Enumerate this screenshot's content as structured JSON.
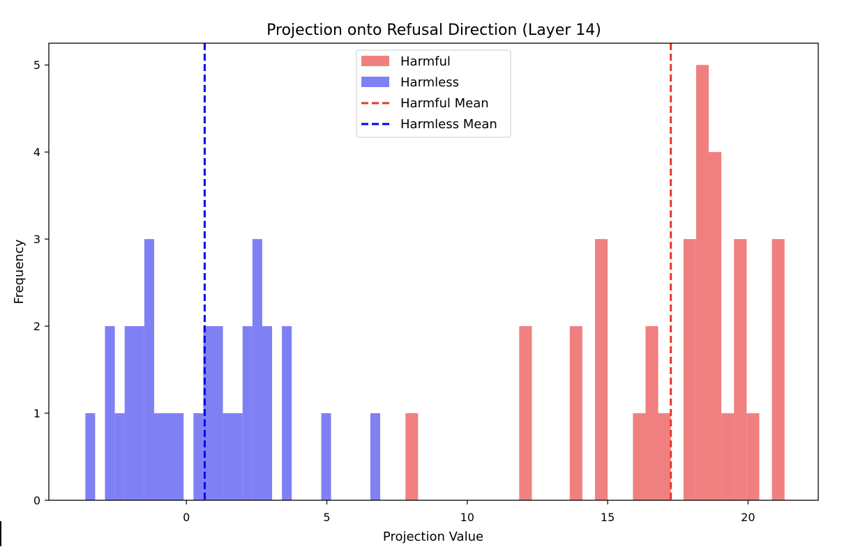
{
  "chart_data": {
    "type": "histogram",
    "title": "Projection onto Refusal Direction (Layer 14)",
    "xlabel": "Projection Value",
    "ylabel": "Frequency",
    "xlim": [
      -4.9,
      22.5
    ],
    "ylim": [
      0,
      5.25
    ],
    "xticks": [
      0,
      5,
      10,
      15,
      20
    ],
    "yticks": [
      0,
      1,
      2,
      3,
      4,
      5
    ],
    "legend_position": "top-center",
    "series": [
      {
        "name": "Harmful",
        "color": "#f08080",
        "bins": [
          {
            "x0": 7.8,
            "x1": 8.25,
            "count": 1
          },
          {
            "x0": 11.85,
            "x1": 12.3,
            "count": 2
          },
          {
            "x0": 13.65,
            "x1": 14.1,
            "count": 2
          },
          {
            "x0": 14.55,
            "x1": 15.0,
            "count": 3
          },
          {
            "x0": 15.9,
            "x1": 16.35,
            "count": 1
          },
          {
            "x0": 16.35,
            "x1": 16.8,
            "count": 2
          },
          {
            "x0": 16.8,
            "x1": 17.25,
            "count": 1
          },
          {
            "x0": 17.7,
            "x1": 18.15,
            "count": 3
          },
          {
            "x0": 18.15,
            "x1": 18.6,
            "count": 5
          },
          {
            "x0": 18.6,
            "x1": 19.05,
            "count": 4
          },
          {
            "x0": 19.05,
            "x1": 19.5,
            "count": 1
          },
          {
            "x0": 19.5,
            "x1": 19.95,
            "count": 3
          },
          {
            "x0": 19.95,
            "x1": 20.4,
            "count": 1
          },
          {
            "x0": 20.85,
            "x1": 21.3,
            "count": 3
          }
        ]
      },
      {
        "name": "Harmless",
        "color": "#8080f5",
        "bins": [
          {
            "x0": -3.6,
            "x1": -3.25,
            "count": 1
          },
          {
            "x0": -2.9,
            "x1": -2.55,
            "count": 2
          },
          {
            "x0": -2.55,
            "x1": -2.2,
            "count": 1
          },
          {
            "x0": -2.2,
            "x1": -1.5,
            "count": 2
          },
          {
            "x0": -1.5,
            "x1": -1.15,
            "count": 3
          },
          {
            "x0": -1.15,
            "x1": -0.1,
            "count": 1
          },
          {
            "x0": 0.25,
            "x1": 0.6,
            "count": 1
          },
          {
            "x0": 0.6,
            "x1": 1.3,
            "count": 2
          },
          {
            "x0": 1.3,
            "x1": 2.0,
            "count": 1
          },
          {
            "x0": 2.0,
            "x1": 2.35,
            "count": 2
          },
          {
            "x0": 2.35,
            "x1": 2.7,
            "count": 3
          },
          {
            "x0": 2.7,
            "x1": 3.05,
            "count": 2
          },
          {
            "x0": 3.4,
            "x1": 3.75,
            "count": 2
          },
          {
            "x0": 4.8,
            "x1": 5.15,
            "count": 1
          },
          {
            "x0": 6.55,
            "x1": 6.9,
            "count": 1
          }
        ]
      }
    ],
    "reference_lines": [
      {
        "name": "Harmful Mean",
        "x": 17.25,
        "color": "#e8372a",
        "style": "dashed"
      },
      {
        "name": "Harmless Mean",
        "x": 0.65,
        "color": "#0000ee",
        "style": "dashed"
      }
    ]
  }
}
